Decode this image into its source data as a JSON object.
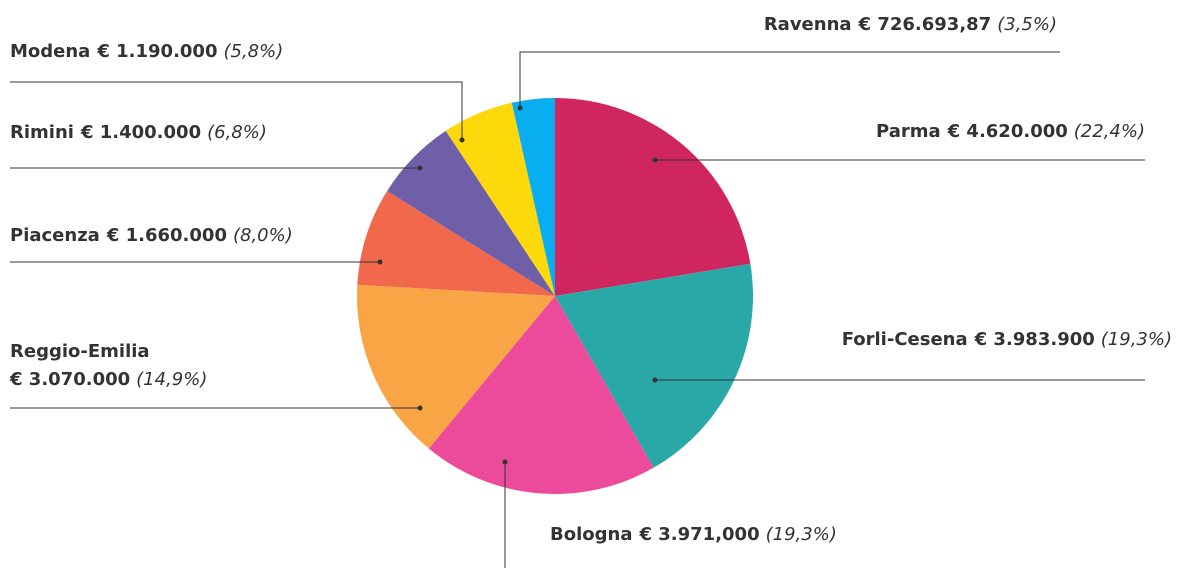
{
  "chart_data": {
    "type": "pie",
    "categories": [
      "Parma",
      "Forli-Cesena",
      "Bologna",
      "Reggio-Emilia",
      "Piacenza",
      "Rimini",
      "Modena",
      "Ravenna"
    ],
    "amount_labels": [
      "€ 4.620.000",
      "€ 3.983.900",
      "€ 3.971,000",
      "€ 3.070.000",
      "€ 1.660.000",
      "€ 1.400.000",
      "€ 1.190.000",
      "€ 726.693,87"
    ],
    "values": [
      22.4,
      19.3,
      19.3,
      14.9,
      8.0,
      6.8,
      5.8,
      3.5
    ],
    "value_labels": [
      "(22,4%)",
      "(19,3%)",
      "(19,3%)",
      "(14,9%)",
      "(8,0%)",
      "(6,8%)",
      "(5,8%)",
      "(3,5%)"
    ],
    "colors": [
      "#d0265f",
      "#2aa8a8",
      "#ec4a9b",
      "#f9a545",
      "#f1684d",
      "#6f5fa8",
      "#fdd80a",
      "#08aef0"
    ]
  }
}
